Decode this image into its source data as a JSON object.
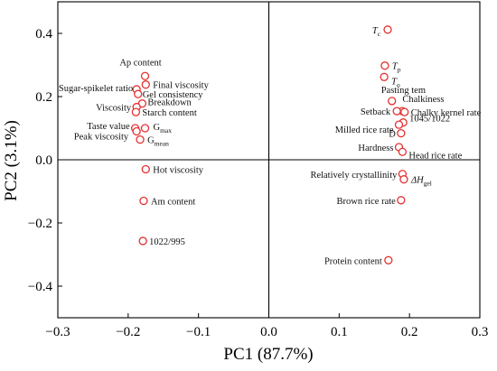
{
  "chart_data": {
    "type": "scatter",
    "xlabel": "PC1 (87.7%)",
    "ylabel": "PC2 (3.1%)",
    "xlim": [
      -0.3,
      0.3
    ],
    "ylim": [
      -0.5,
      0.5
    ],
    "x_ticks": [
      "−0.3",
      "−0.2",
      "−0.1",
      "0.0",
      "0.1",
      "0.2",
      "0.3"
    ],
    "y_ticks": [
      "−0.4",
      "−0.2",
      "0.0",
      "0.2",
      "0.4"
    ],
    "grid": false,
    "zero_lines": true,
    "marker_color": "#e53030",
    "points": [
      {
        "label": "T",
        "sub": "c",
        "italic": true,
        "x": 0.169,
        "y": 0.412
      },
      {
        "label": "T",
        "sub": "p",
        "italic": true,
        "x": 0.165,
        "y": 0.298
      },
      {
        "label": "T",
        "sub": "o",
        "italic": true,
        "x": 0.164,
        "y": 0.262
      },
      {
        "label": "Pasting tem",
        "x": 0.175,
        "y": 0.186
      },
      {
        "label": "Chalkiness",
        "x": 0.19,
        "y": 0.154
      },
      {
        "label": "Setback",
        "x": 0.182,
        "y": 0.154
      },
      {
        "label": "Chalky kernel rate",
        "x": 0.193,
        "y": 0.151
      },
      {
        "label": "1045/1022",
        "x": 0.191,
        "y": 0.118
      },
      {
        "label": "Milled rice rate",
        "x": 0.185,
        "y": 0.111
      },
      {
        "label": "D",
        "x": 0.188,
        "y": 0.084
      },
      {
        "label": "Hardness",
        "x": 0.185,
        "y": 0.04
      },
      {
        "label": "Head rice rate",
        "x": 0.19,
        "y": 0.025
      },
      {
        "label": "Relatively crystallinity",
        "x": 0.19,
        "y": -0.045
      },
      {
        "label": "ΔH",
        "sub": "gel",
        "italic": true,
        "x": 0.192,
        "y": -0.062
      },
      {
        "label": "Brown rice rate",
        "x": 0.188,
        "y": -0.128
      },
      {
        "label": "Protein content",
        "x": 0.17,
        "y": -0.318
      },
      {
        "label": "Ap content",
        "x": -0.176,
        "y": 0.265
      },
      {
        "label": "Final viscosity",
        "x": -0.175,
        "y": 0.238
      },
      {
        "label": "Sugar-spikelet ratio",
        "x": -0.188,
        "y": 0.223
      },
      {
        "label": "Gel consistency",
        "x": -0.186,
        "y": 0.208
      },
      {
        "label": "Breakdown",
        "x": -0.18,
        "y": 0.178
      },
      {
        "label": "Viscosity",
        "x": -0.188,
        "y": 0.167
      },
      {
        "label": "Starch content",
        "x": -0.189,
        "y": 0.151
      },
      {
        "label": "Taste value",
        "x": -0.19,
        "y": 0.1
      },
      {
        "label": "G",
        "sub": "max",
        "x": -0.176,
        "y": 0.1
      },
      {
        "label": "Peak viscosity",
        "x": -0.188,
        "y": 0.09
      },
      {
        "label": "G",
        "sub": "mean",
        "x": -0.183,
        "y": 0.064
      },
      {
        "label": "Hot viscosity",
        "x": -0.175,
        "y": -0.03
      },
      {
        "label": "Am content",
        "x": -0.178,
        "y": -0.13
      },
      {
        "label": "1022/995",
        "x": -0.179,
        "y": -0.257
      }
    ]
  }
}
